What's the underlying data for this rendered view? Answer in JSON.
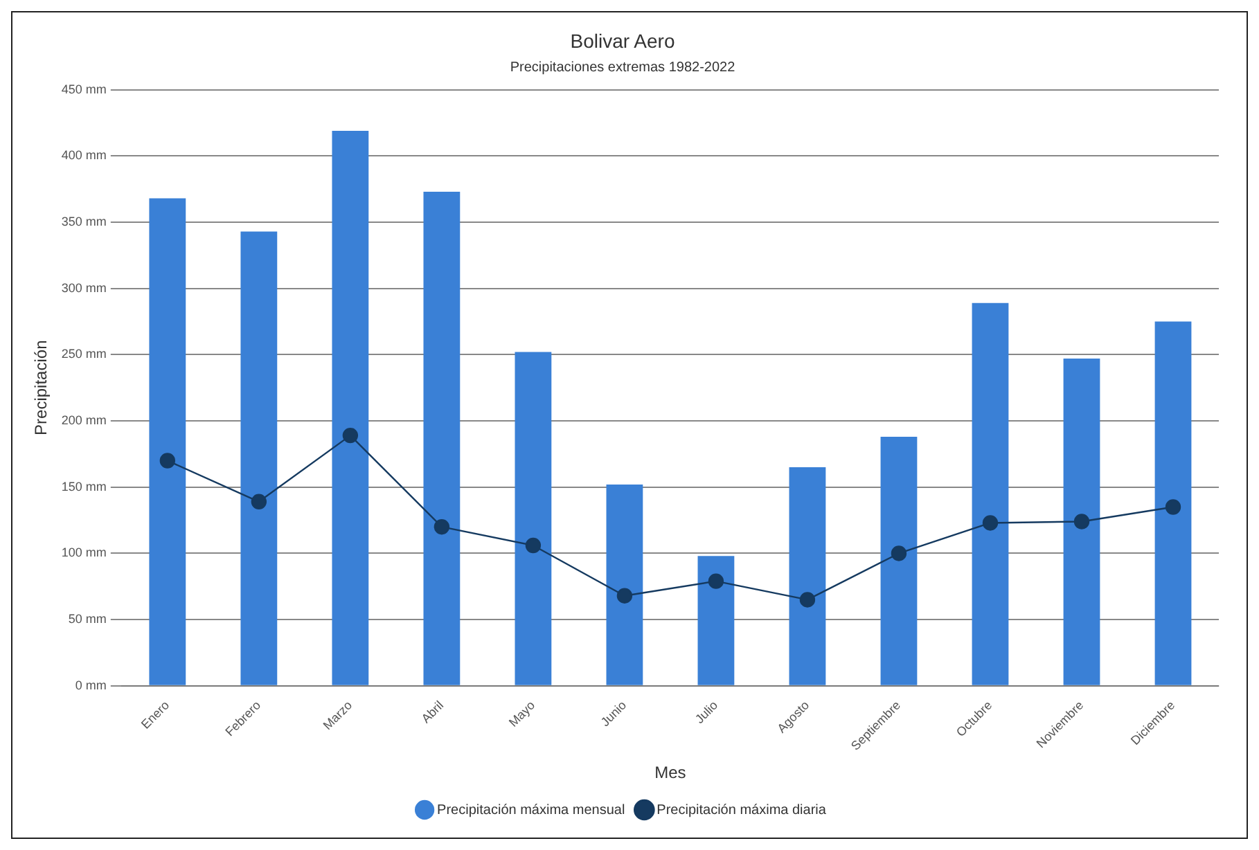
{
  "chart_data": {
    "type": "bar",
    "title": "Bolivar Aero",
    "subtitle": "Precipitaciones extremas 1982-2022",
    "xlabel": "Mes",
    "ylabel": "Precipitación",
    "categories": [
      "Enero",
      "Febrero",
      "Marzo",
      "Abril",
      "Mayo",
      "Junio",
      "Julio",
      "Agosto",
      "Septiembre",
      "Octubre",
      "Noviembre",
      "Diciembre"
    ],
    "series": [
      {
        "name": "Precipitación máxima mensual",
        "color": "#3a80d6",
        "values": [
          368,
          343,
          419,
          373,
          252,
          152,
          98,
          165,
          188,
          289,
          247,
          275
        ]
      },
      {
        "name": "Precipitación máxima diaria",
        "type": "line",
        "color": "#153a60",
        "values": [
          170,
          139,
          189,
          120,
          106,
          68,
          79,
          65,
          100,
          123,
          124,
          135
        ]
      }
    ],
    "ylim": [
      0,
      450
    ],
    "yticks": [
      {
        "value": 0,
        "label": "0 mm"
      },
      {
        "value": 50,
        "label": "50 mm"
      },
      {
        "value": 100,
        "label": "100 mm"
      },
      {
        "value": 150,
        "label": "150 mm"
      },
      {
        "value": 200,
        "label": "200 mm"
      },
      {
        "value": 250,
        "label": "250 mm"
      },
      {
        "value": 300,
        "label": "300 mm"
      },
      {
        "value": 350,
        "label": "350 mm"
      },
      {
        "value": 400,
        "label": "400 mm"
      },
      {
        "value": 450,
        "label": "450 mm"
      }
    ],
    "grid": "y",
    "legend": "bottom",
    "marker": "circle"
  }
}
